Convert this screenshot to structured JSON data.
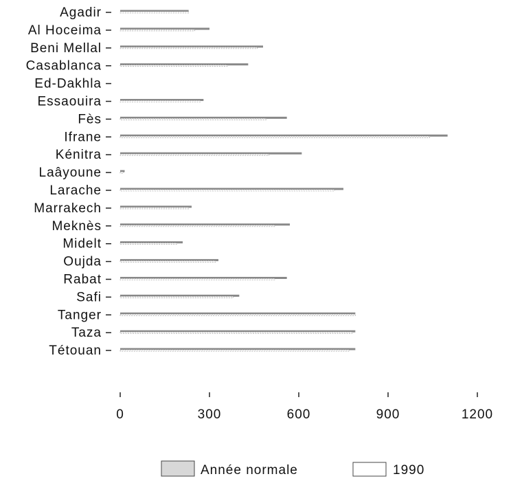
{
  "chart_data": {
    "type": "bar",
    "orientation": "horizontal",
    "categories": [
      "Agadir",
      "Al Hoceima",
      "Beni Mellal",
      "Casablanca",
      "Ed-Dakhla",
      "Essaouira",
      "Fès",
      "Ifrane",
      "Kénitra",
      "Laâyoune",
      "Larache",
      "Marrakech",
      "Meknès",
      "Midelt",
      "Oujda",
      "Rabat",
      "Safi",
      "Tanger",
      "Taza",
      "Tétouan"
    ],
    "series": [
      {
        "name": "Année normale",
        "color": "#555555",
        "values": [
          230,
          300,
          480,
          430,
          0,
          280,
          560,
          1100,
          610,
          15,
          750,
          240,
          570,
          210,
          330,
          560,
          400,
          790,
          790,
          790
        ]
      },
      {
        "name": "1990",
        "color": "#ffffff",
        "values": [
          230,
          250,
          460,
          360,
          0,
          270,
          490,
          1040,
          500,
          10,
          720,
          230,
          520,
          190,
          320,
          520,
          380,
          790,
          780,
          770
        ]
      }
    ],
    "xticks": [
      "0",
      "300",
      "600",
      "900",
      "1200"
    ],
    "xlim": [
      0,
      1200
    ],
    "grid": false,
    "legend_position": "bottom"
  }
}
